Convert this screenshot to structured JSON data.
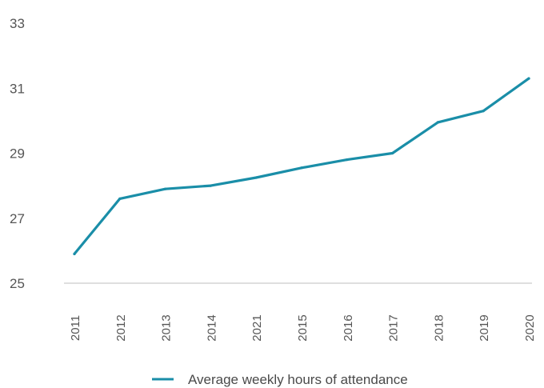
{
  "chart_data": {
    "type": "line",
    "title": "",
    "xlabel": "",
    "ylabel": "",
    "ylim": [
      25,
      33
    ],
    "yticks": [
      "25",
      "27",
      "29",
      "31",
      "33"
    ],
    "categories": [
      "2011",
      "2012",
      "2013",
      "2014",
      "2021",
      "2015",
      "2016",
      "2017",
      "2018",
      "2019",
      "2020"
    ],
    "series": [
      {
        "name": "Average weekly hours of attendance",
        "color": "#1a8ea8",
        "values": [
          25.9,
          27.6,
          27.9,
          28.0,
          28.25,
          28.55,
          28.8,
          29.0,
          29.95,
          30.3,
          31.3
        ]
      }
    ],
    "grid": false,
    "legend": "bottom-center"
  }
}
